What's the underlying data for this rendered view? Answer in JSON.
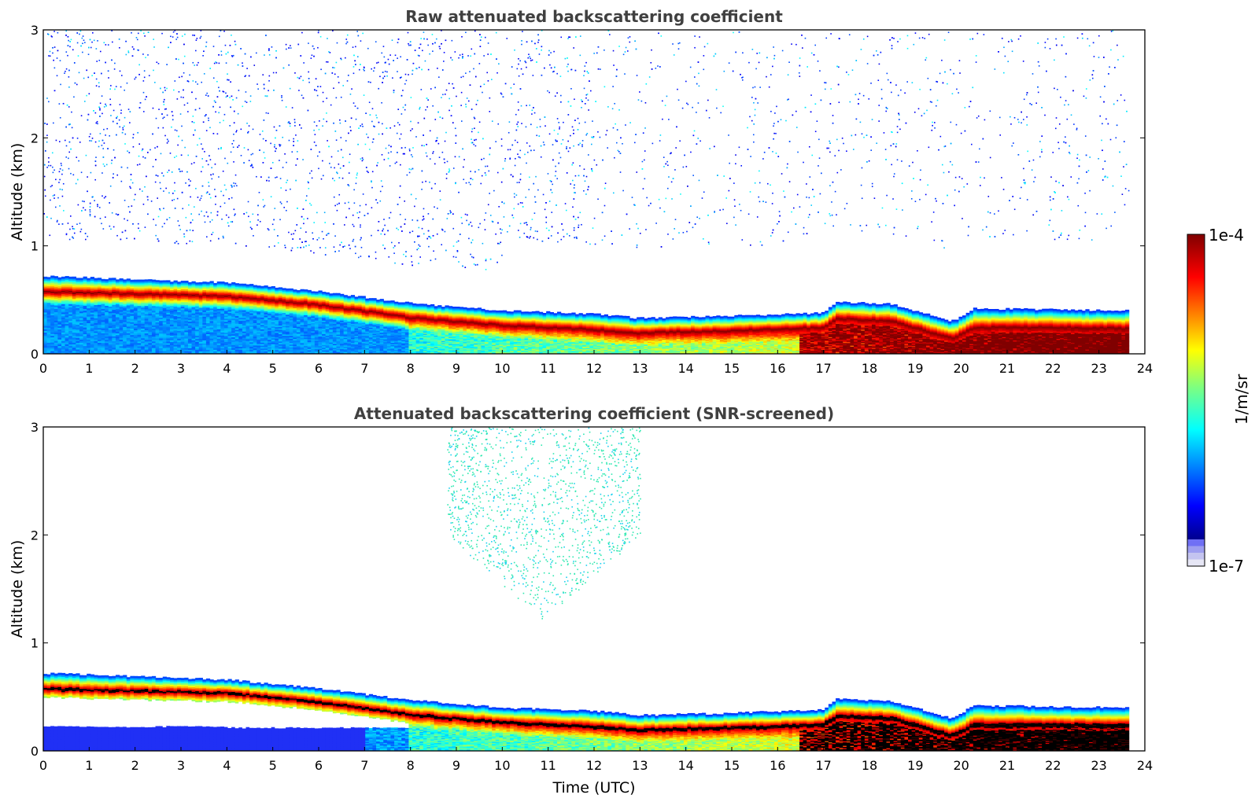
{
  "chart_data": [
    {
      "type": "heatmap",
      "title": "Raw attenuated backscattering coefficient",
      "xlabel": "",
      "ylabel": "Altitude (km)",
      "xlim": [
        0,
        24
      ],
      "ylim": [
        0,
        3
      ],
      "xticks": [
        "0",
        "1",
        "2",
        "3",
        "4",
        "5",
        "6",
        "7",
        "8",
        "9",
        "10",
        "11",
        "12",
        "13",
        "14",
        "15",
        "16",
        "17",
        "18",
        "19",
        "20",
        "21",
        "22",
        "23",
        "24"
      ],
      "yticks": [
        "0",
        "1",
        "2",
        "3"
      ],
      "data_end_hour": 23.65,
      "layer_top_km": [
        {
          "x": 0,
          "y": 0.72
        },
        {
          "x": 2,
          "y": 0.69
        },
        {
          "x": 4,
          "y": 0.66
        },
        {
          "x": 6,
          "y": 0.58
        },
        {
          "x": 8,
          "y": 0.47
        },
        {
          "x": 10,
          "y": 0.4
        },
        {
          "x": 12,
          "y": 0.37
        },
        {
          "x": 13,
          "y": 0.33
        },
        {
          "x": 15,
          "y": 0.35
        },
        {
          "x": 17,
          "y": 0.38
        },
        {
          "x": 17.3,
          "y": 0.48
        },
        {
          "x": 18.5,
          "y": 0.46
        },
        {
          "x": 19.8,
          "y": 0.3
        },
        {
          "x": 20.3,
          "y": 0.42
        },
        {
          "x": 22,
          "y": 0.41
        },
        {
          "x": 23.65,
          "y": 0.4
        }
      ],
      "layer_peak_km": [
        {
          "x": 0,
          "y": 0.58
        },
        {
          "x": 2,
          "y": 0.56
        },
        {
          "x": 4,
          "y": 0.54
        },
        {
          "x": 6,
          "y": 0.46
        },
        {
          "x": 8,
          "y": 0.34
        },
        {
          "x": 10,
          "y": 0.27
        },
        {
          "x": 12,
          "y": 0.23
        },
        {
          "x": 13,
          "y": 0.2
        },
        {
          "x": 15,
          "y": 0.22
        },
        {
          "x": 17,
          "y": 0.25
        },
        {
          "x": 17.3,
          "y": 0.33
        },
        {
          "x": 18.5,
          "y": 0.31
        },
        {
          "x": 19.8,
          "y": 0.15
        },
        {
          "x": 20.3,
          "y": 0.25
        },
        {
          "x": 22,
          "y": 0.25
        },
        {
          "x": 23.65,
          "y": 0.24
        }
      ]
    },
    {
      "type": "heatmap",
      "title": "Attenuated backscattering coefficient (SNR-screened)",
      "xlabel": "Time (UTC)",
      "ylabel": "Altitude (km)",
      "xlim": [
        0,
        24
      ],
      "ylim": [
        0,
        3
      ],
      "xticks": [
        "0",
        "1",
        "2",
        "3",
        "4",
        "5",
        "6",
        "7",
        "8",
        "9",
        "10",
        "11",
        "12",
        "13",
        "14",
        "15",
        "16",
        "17",
        "18",
        "19",
        "20",
        "21",
        "22",
        "23",
        "24"
      ],
      "yticks": [
        "0",
        "1",
        "2",
        "3"
      ],
      "data_end_hour": 23.65,
      "aloft_scatter_region": {
        "x_range": [
          8.8,
          13
        ],
        "y_range": [
          1.2,
          3
        ]
      },
      "low_blue_block": {
        "x_range": [
          0,
          8
        ],
        "y_range": [
          0.05,
          0.23
        ]
      }
    }
  ],
  "colorbar": {
    "max_label": "1e-4",
    "min_label": "1e-7",
    "unit_label": "1/m/sr",
    "colormap": "jet",
    "under_colors": [
      "#e6e6f5",
      "#c4c4f0",
      "#9e9ef0",
      "#7070f5"
    ]
  }
}
